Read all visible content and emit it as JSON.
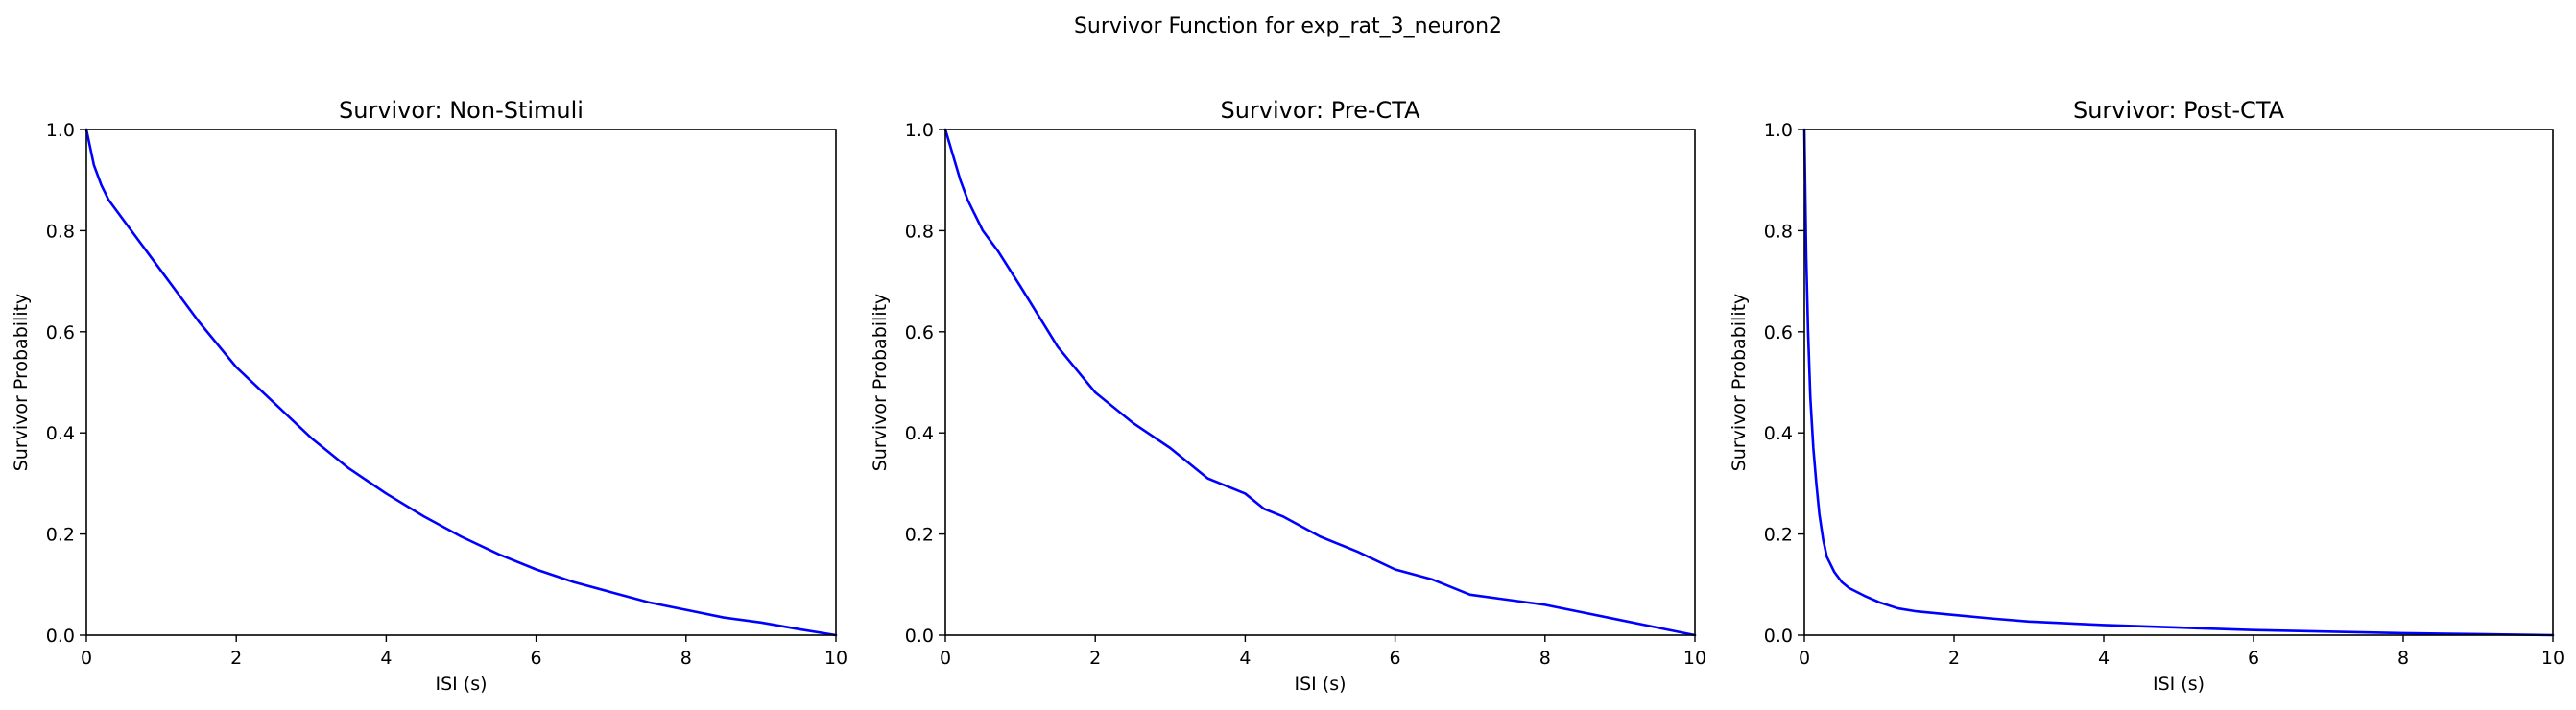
{
  "figure": {
    "title": "Survivor Function for exp_rat_3_neuron2"
  },
  "chart_data": [
    {
      "type": "line",
      "title": "Survivor: Non-Stimuli",
      "xlabel": "ISI (s)",
      "ylabel": "Survivor Probability",
      "xlim": [
        0,
        10
      ],
      "ylim": [
        0,
        1
      ],
      "xticks": [
        "0",
        "2",
        "4",
        "6",
        "8",
        "10"
      ],
      "yticks": [
        "0.0",
        "0.2",
        "0.4",
        "0.6",
        "0.8",
        "1.0"
      ],
      "grid": false,
      "series": [
        {
          "color": "#0000ff",
          "x": [
            0,
            0.1,
            0.2,
            0.3,
            0.5,
            0.75,
            1.0,
            1.25,
            1.5,
            2.0,
            2.5,
            3.0,
            3.5,
            4.0,
            4.5,
            5.0,
            5.5,
            6.0,
            6.5,
            7.0,
            7.5,
            8.0,
            8.5,
            9.0,
            9.5,
            10.0
          ],
          "y": [
            1.0,
            0.93,
            0.89,
            0.86,
            0.82,
            0.77,
            0.72,
            0.67,
            0.62,
            0.53,
            0.46,
            0.39,
            0.33,
            0.28,
            0.235,
            0.195,
            0.16,
            0.13,
            0.105,
            0.085,
            0.065,
            0.05,
            0.035,
            0.025,
            0.012,
            0.0
          ]
        }
      ]
    },
    {
      "type": "line",
      "title": "Survivor: Pre-CTA",
      "xlabel": "ISI (s)",
      "ylabel": "Survivor Probability",
      "xlim": [
        0,
        10
      ],
      "ylim": [
        0,
        1
      ],
      "xticks": [
        "0",
        "2",
        "4",
        "6",
        "8",
        "10"
      ],
      "yticks": [
        "0.0",
        "0.2",
        "0.4",
        "0.6",
        "0.8",
        "1.0"
      ],
      "grid": false,
      "series": [
        {
          "color": "#0000ff",
          "x": [
            0,
            0.1,
            0.2,
            0.3,
            0.5,
            0.7,
            1.0,
            1.25,
            1.5,
            2.0,
            2.5,
            3.0,
            3.5,
            4.0,
            4.25,
            4.5,
            5.0,
            5.5,
            6.0,
            6.5,
            7.0,
            7.5,
            8.0,
            8.5,
            9.0,
            9.5,
            10.0
          ],
          "y": [
            1.0,
            0.95,
            0.9,
            0.86,
            0.8,
            0.76,
            0.69,
            0.63,
            0.57,
            0.48,
            0.42,
            0.37,
            0.31,
            0.28,
            0.25,
            0.235,
            0.195,
            0.165,
            0.13,
            0.11,
            0.08,
            0.07,
            0.06,
            0.045,
            0.03,
            0.015,
            0.0
          ]
        }
      ]
    },
    {
      "type": "line",
      "title": "Survivor: Post-CTA",
      "xlabel": "ISI (s)",
      "ylabel": "Survivor Probability",
      "xlim": [
        0,
        10
      ],
      "ylim": [
        0,
        1
      ],
      "xticks": [
        "0",
        "2",
        "4",
        "6",
        "8",
        "10"
      ],
      "yticks": [
        "0.0",
        "0.2",
        "0.4",
        "0.6",
        "0.8",
        "1.0"
      ],
      "grid": false,
      "series": [
        {
          "color": "#0000ff",
          "x": [
            0,
            0.01,
            0.025,
            0.05,
            0.08,
            0.12,
            0.16,
            0.2,
            0.25,
            0.3,
            0.4,
            0.5,
            0.6,
            0.8,
            1.0,
            1.25,
            1.5,
            2.0,
            2.5,
            3.0,
            4.0,
            5.0,
            6.0,
            7.0,
            8.0,
            9.0,
            10.0
          ],
          "y": [
            1.0,
            0.9,
            0.75,
            0.6,
            0.47,
            0.37,
            0.3,
            0.24,
            0.19,
            0.155,
            0.125,
            0.105,
            0.093,
            0.078,
            0.065,
            0.053,
            0.047,
            0.04,
            0.033,
            0.027,
            0.02,
            0.015,
            0.01,
            0.007,
            0.004,
            0.002,
            0.0
          ]
        }
      ]
    }
  ]
}
